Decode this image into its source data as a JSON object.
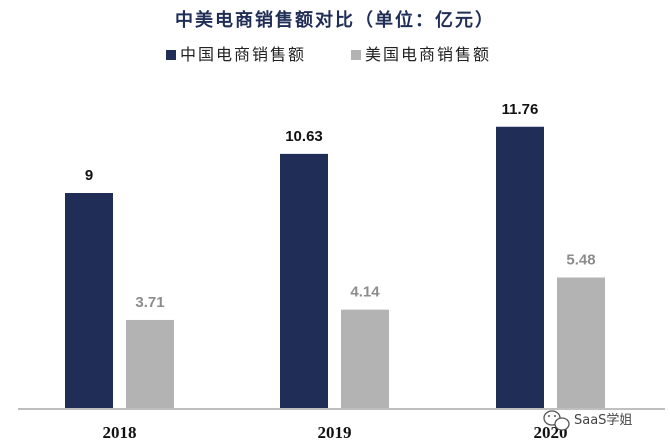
{
  "chart_data": {
    "type": "bar",
    "title": "中美电商销售额对比（单位：亿元）",
    "categories": [
      "2018",
      "2019",
      "2020"
    ],
    "series": [
      {
        "name": "中国电商销售额",
        "values": [
          9,
          10.63,
          11.76
        ],
        "labels": [
          "9",
          "10.63",
          "11.76"
        ],
        "color": "#1f2d57"
      },
      {
        "name": "美国电商销售额",
        "values": [
          3.71,
          4.14,
          5.48
        ],
        "labels": [
          "3.71",
          "4.14",
          "5.48"
        ],
        "color": "#b3b3b3"
      }
    ],
    "ylim": [
      0,
      13.5
    ],
    "grid": false,
    "legend_position": "top-center",
    "xlabel": "",
    "ylabel": ""
  },
  "watermark": {
    "text": "SaaS学姐",
    "icon": "wechat-logo-icon"
  },
  "colors": {
    "axis": "#bfbfbf",
    "cn_label": "#111111",
    "us_label": "#8c8c8c"
  }
}
